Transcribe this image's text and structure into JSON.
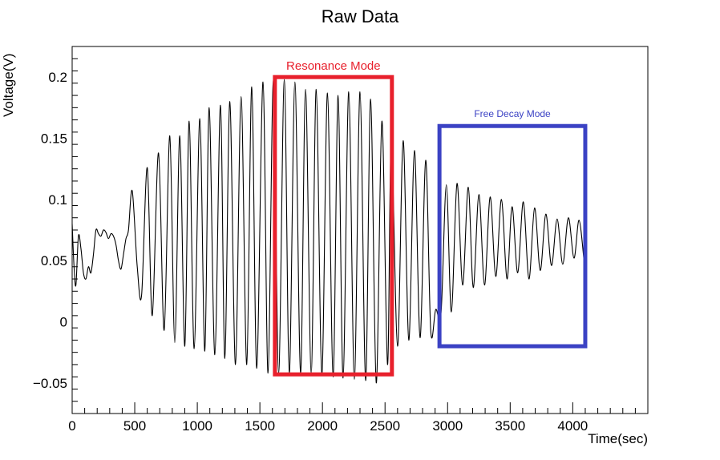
{
  "chart_data": {
    "type": "line",
    "title": "Raw Data",
    "xlabel": "Time(sec)",
    "ylabel": "Voltage(V)",
    "xlim": [
      0,
      4600
    ],
    "ylim": [
      -0.075,
      0.225
    ],
    "x_ticks": [
      0,
      500,
      1000,
      1500,
      2000,
      2500,
      3000,
      3500,
      4000
    ],
    "x_tick_labels": [
      "0",
      "500",
      "1000",
      "1500",
      "2000",
      "2500",
      "3000",
      "3500",
      "4000"
    ],
    "y_ticks": [
      -0.05,
      0,
      0.05,
      0.1,
      0.15,
      0.2
    ],
    "y_tick_labels": [
      "−0.05",
      "0",
      "0.05",
      "0.1",
      "0.15",
      "0.2"
    ],
    "grid": false,
    "legend": "none",
    "series": [
      {
        "color": "#000000",
        "x": [
          0,
          15,
          30,
          50,
          70,
          90,
          110,
          130,
          150,
          170,
          190,
          210,
          230,
          250,
          270,
          290,
          310,
          330,
          350,
          370,
          390,
          410,
          430,
          450,
          480,
          520,
          555,
          600,
          640,
          690,
          735,
          780,
          820,
          860,
          900,
          935,
          975,
          1020,
          1060,
          1095,
          1140,
          1185,
          1220,
          1260,
          1305,
          1350,
          1395,
          1435,
          1475,
          1525,
          1565,
          1608,
          1650,
          1695,
          1735,
          1780,
          1825,
          1865,
          1910,
          1950,
          1995,
          2040,
          2085,
          2125,
          2165,
          2210,
          2255,
          2300,
          2345,
          2385,
          2430,
          2475,
          2520,
          2550,
          2600,
          2645,
          2690,
          2735,
          2780,
          2825,
          2865,
          2905,
          2948,
          2990,
          3030,
          3075,
          3120,
          3165,
          3205,
          3250,
          3295,
          3340,
          3385,
          3430,
          3475,
          3515,
          3560,
          3605,
          3650,
          3695,
          3740,
          3785,
          3830,
          3875,
          3920,
          3965,
          4010,
          4050,
          4090
        ],
        "values": [
          0.08,
          0.045,
          0.03,
          0.07,
          0.06,
          0.04,
          0.035,
          0.045,
          0.04,
          0.055,
          0.075,
          0.072,
          0.07,
          0.075,
          0.073,
          0.068,
          0.072,
          0.07,
          0.063,
          0.05,
          0.043,
          0.055,
          0.068,
          0.075,
          0.107,
          0.045,
          0.022,
          0.126,
          0.005,
          0.138,
          -0.007,
          0.152,
          -0.017,
          0.152,
          -0.02,
          0.164,
          -0.022,
          0.166,
          -0.024,
          0.175,
          -0.027,
          0.177,
          -0.03,
          0.18,
          -0.035,
          0.184,
          -0.035,
          0.192,
          -0.038,
          0.196,
          -0.042,
          0.198,
          -0.042,
          0.198,
          -0.042,
          0.196,
          -0.042,
          0.19,
          -0.042,
          0.19,
          -0.043,
          0.187,
          -0.045,
          0.185,
          -0.046,
          0.188,
          -0.047,
          0.188,
          -0.048,
          0.182,
          -0.05,
          0.164,
          -0.035,
          0.15,
          -0.02,
          0.148,
          -0.015,
          0.14,
          -0.013,
          0.132,
          -0.007,
          0.01,
          0.008,
          0.112,
          0.008,
          0.113,
          0.03,
          0.11,
          0.028,
          0.104,
          0.03,
          0.102,
          0.037,
          0.1,
          0.035,
          0.094,
          0.04,
          0.098,
          0.035,
          0.093,
          0.042,
          0.088,
          0.046,
          0.084,
          0.047,
          0.085,
          0.052,
          0.083,
          0.05
        ]
      }
    ],
    "annotations": [
      {
        "text": "Resonance Mode",
        "color": "#e8202c",
        "box_x": [
          1620,
          2555
        ],
        "box_y": [
          -0.043,
          0.2
        ]
      },
      {
        "text": "Free Decay Mode",
        "color": "#3b42c4",
        "box_x": [
          2935,
          4100
        ],
        "box_y": [
          -0.02,
          0.16
        ]
      }
    ]
  }
}
